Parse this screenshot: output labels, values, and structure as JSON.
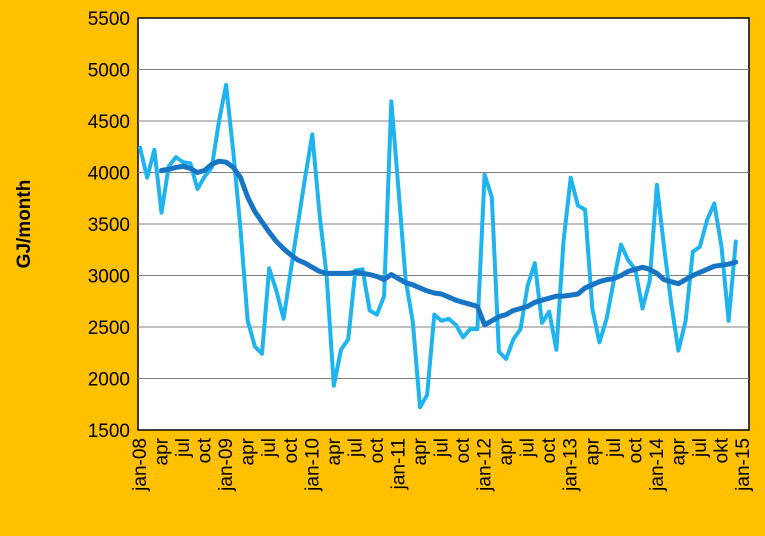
{
  "chart_data": {
    "type": "line",
    "title": "",
    "xlabel": "",
    "ylabel": "GJ/month",
    "ylim": [
      1500,
      5500
    ],
    "yticks": [
      1500,
      2000,
      2500,
      3000,
      3500,
      4000,
      4500,
      5000,
      5500
    ],
    "grid": "horizontal",
    "legend": "none",
    "x": [
      "jan-08",
      "feb-08",
      "mar-08",
      "apr-08",
      "may-08",
      "jun-08",
      "jul-08",
      "aug-08",
      "sep-08",
      "oct-08",
      "nov-08",
      "dec-08",
      "jan-09",
      "feb-09",
      "mar-09",
      "apr-09",
      "may-09",
      "jun-09",
      "jul-09",
      "aug-09",
      "sep-09",
      "oct-09",
      "nov-09",
      "dec-09",
      "jan-10",
      "feb-10",
      "mar-10",
      "apr-10",
      "may-10",
      "jun-10",
      "jul-10",
      "aug-10",
      "sep-10",
      "oct-10",
      "nov-10",
      "dec-10",
      "jan-11",
      "feb-11",
      "mar-11",
      "apr-11",
      "may-11",
      "jun-11",
      "jul-11",
      "aug-11",
      "sep-11",
      "oct-11",
      "nov-11",
      "dec-11",
      "jan-12",
      "feb-12",
      "mar-12",
      "apr-12",
      "may-12",
      "jun-12",
      "jul-12",
      "aug-12",
      "sep-12",
      "oct-12",
      "nov-12",
      "dec-12",
      "jan-13",
      "feb-13",
      "mar-13",
      "apr-13",
      "may-13",
      "jun-13",
      "jul-13",
      "aug-13",
      "sep-13",
      "oct-13",
      "nov-13",
      "dec-13",
      "jan-14",
      "feb-14",
      "mar-14",
      "apr-14",
      "may-14",
      "jun-14",
      "jul-14",
      "aug-14",
      "sep-14",
      "okt-14",
      "nov-14",
      "dec-14",
      "jan-15"
    ],
    "tick_labels": [
      "jan-08",
      "apr",
      "jul",
      "oct",
      "jan-09",
      "apr",
      "jul",
      "oct",
      "jan-10",
      "apr",
      "jul",
      "oct",
      "jan-11",
      "apr",
      "jul",
      "oct",
      "jan-12",
      "apr",
      "jul",
      "oct",
      "jan-13",
      "apr",
      "jul",
      "oct",
      "jan-14",
      "apr",
      "jul",
      "okt",
      "jan-15"
    ],
    "series": [
      {
        "color": "#1FB4EE",
        "width": 4,
        "values": [
          4240,
          3950,
          4220,
          3610,
          4060,
          4150,
          4100,
          4090,
          3840,
          3960,
          4050,
          4500,
          4850,
          4200,
          3450,
          2560,
          2310,
          2240,
          3070,
          2850,
          2580,
          3050,
          3500,
          3950,
          4370,
          3600,
          3000,
          1930,
          2280,
          2380,
          3050,
          3060,
          2660,
          2620,
          2800,
          4690,
          3850,
          2960,
          2550,
          1720,
          1840,
          2620,
          2560,
          2580,
          2520,
          2400,
          2480,
          2480,
          3980,
          3760,
          2260,
          2190,
          2380,
          2480,
          2900,
          3120,
          2540,
          2650,
          2280,
          3330,
          3950,
          3680,
          3640,
          2680,
          2350,
          2580,
          2950,
          3300,
          3150,
          3060,
          2680,
          2950,
          3880,
          3280,
          2730,
          2270,
          2560,
          3230,
          3280,
          3540,
          3700,
          3280,
          2560,
          3330,
          null
        ],
        "smooth_start_index": 0
      },
      {
        "color": "#1874C4",
        "width": 5,
        "values": [
          null,
          null,
          null,
          4020,
          4030,
          4050,
          4060,
          4040,
          4000,
          4020,
          4080,
          4110,
          4100,
          4050,
          3950,
          3760,
          3620,
          3520,
          3420,
          3330,
          3260,
          3200,
          3150,
          3120,
          3080,
          3040,
          3020,
          3020,
          3020,
          3020,
          3030,
          3020,
          3010,
          2990,
          2960,
          3010,
          2970,
          2930,
          2910,
          2880,
          2850,
          2830,
          2820,
          2790,
          2760,
          2740,
          2720,
          2700,
          2520,
          2560,
          2600,
          2620,
          2660,
          2680,
          2700,
          2740,
          2760,
          2780,
          2800,
          2800,
          2810,
          2820,
          2880,
          2910,
          2940,
          2960,
          2970,
          3000,
          3040,
          3060,
          3080,
          3060,
          3020,
          2960,
          2940,
          2920,
          2960,
          3000,
          3030,
          3060,
          3090,
          3100,
          3110,
          3130,
          null
        ]
      }
    ]
  }
}
